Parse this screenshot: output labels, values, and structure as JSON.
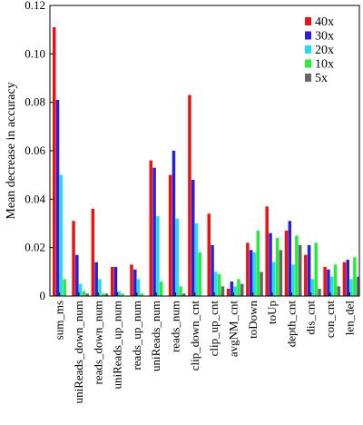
{
  "chart_data": {
    "type": "bar",
    "title": "",
    "xlabel": "",
    "ylabel": "Mean decrease in accuracy",
    "ylim": [
      0,
      0.12
    ],
    "yticks": [
      "0",
      "0.02",
      "0.04",
      "0.06",
      "0.08",
      "0.10",
      "0.12"
    ],
    "grid": false,
    "legend_position": "top-right",
    "categories": [
      "sum_ms",
      "uniReads_down_num",
      "reads_down_num",
      "uniReads_up_num",
      "reads_up_num",
      "uniReads_num",
      "reads_num",
      "clip_down_cnt",
      "clip_up_cnt",
      "avgNM_cnt",
      "toDown",
      "toUp",
      "depth_cnt",
      "dis_cnt",
      "con_cnt",
      "len_del"
    ],
    "series": [
      {
        "name": "40x",
        "color": "#ee1111",
        "values": [
          0.111,
          0.031,
          0.036,
          0.012,
          0.013,
          0.056,
          0.05,
          0.083,
          0.034,
          0.003,
          0.022,
          0.037,
          0.027,
          0.017,
          0.012,
          0.014
        ]
      },
      {
        "name": "30x",
        "color": "#2a1fd8",
        "values": [
          0.081,
          0.017,
          0.014,
          0.012,
          0.011,
          0.053,
          0.06,
          0.048,
          0.021,
          0.006,
          0.019,
          0.026,
          0.031,
          0.021,
          0.011,
          0.015
        ]
      },
      {
        "name": "20x",
        "color": "#22ddee",
        "values": [
          0.05,
          0.005,
          0.007,
          0.002,
          0.007,
          0.033,
          0.032,
          0.03,
          0.01,
          0.004,
          0.018,
          0.014,
          0.013,
          0.007,
          0.008,
          0.007
        ]
      },
      {
        "name": "10x",
        "color": "#22ee33",
        "values": [
          0.007,
          0.002,
          0.001,
          0.001,
          0.001,
          0.006,
          0.004,
          0.018,
          0.009,
          0.007,
          0.027,
          0.024,
          0.025,
          0.022,
          0.013,
          0.016
        ]
      },
      {
        "name": "5x",
        "color": "#666666",
        "values": [
          0.0,
          0.001,
          0.001,
          0.0,
          0.0,
          0.0,
          0.001,
          0.0,
          0.004,
          0.005,
          0.01,
          0.019,
          0.021,
          0.003,
          0.004,
          0.008
        ]
      }
    ]
  }
}
